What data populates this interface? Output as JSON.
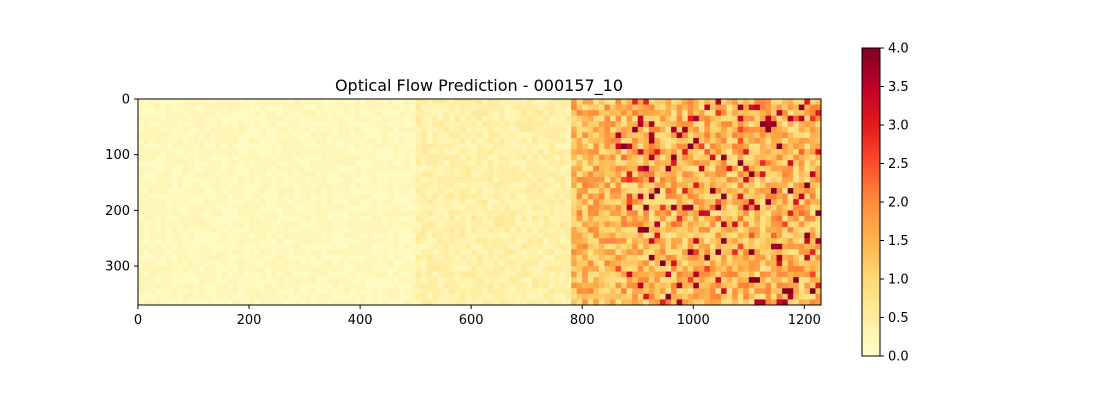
{
  "chart_data": {
    "type": "heatmap",
    "title": "Optical Flow Prediction - 000157_10",
    "xlabel": "",
    "ylabel": "",
    "image_extent": {
      "width": 1230,
      "height": 370
    },
    "x_ticks": [
      0,
      200,
      400,
      600,
      800,
      1000,
      1200
    ],
    "y_ticks": [
      0,
      100,
      200,
      300
    ],
    "colorbar": {
      "colormap": "YlOrRd",
      "range": [
        0,
        4
      ],
      "ticks": [
        "0.0",
        "0.5",
        "1.0",
        "1.5",
        "2.0",
        "2.5",
        "3.0",
        "3.5",
        "4.0"
      ]
    },
    "colors": {
      "low": "#ffffcc",
      "mid": "#fd8d3c",
      "high": "#800026"
    },
    "description_regions": [
      {
        "x_range": [
          0,
          500
        ],
        "y_range": [
          0,
          370
        ],
        "magnitude": 0.2
      },
      {
        "x_range": [
          500,
          780
        ],
        "y_range": [
          0,
          370
        ],
        "magnitude": 0.4
      },
      {
        "x_range": [
          780,
          1230
        ],
        "y_range": [
          0,
          370
        ],
        "magnitude": 1.4
      }
    ]
  }
}
